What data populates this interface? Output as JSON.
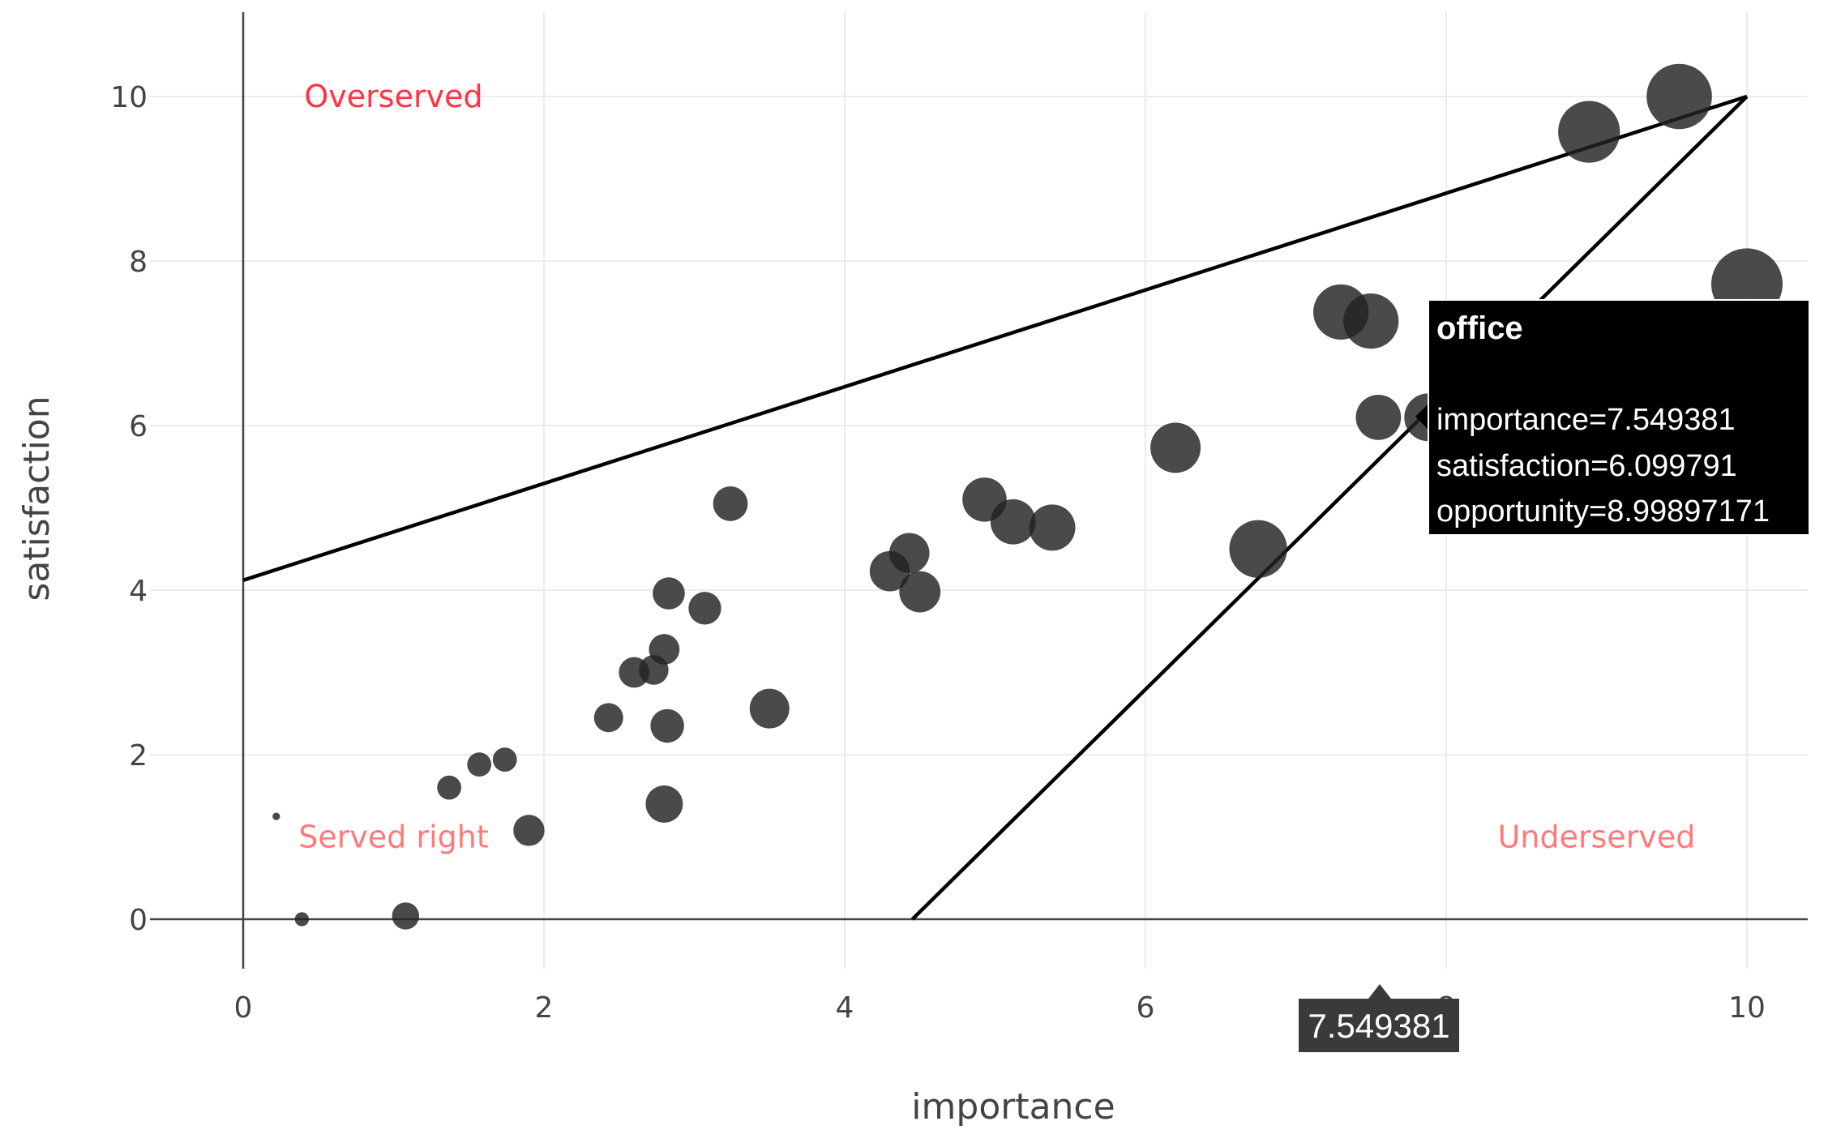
{
  "chart_data": {
    "type": "scatter",
    "title": "",
    "xlabel": "importance",
    "ylabel": "satisfaction",
    "xlim": [
      -0.6,
      10.4
    ],
    "ylim": [
      -0.75,
      10.95
    ],
    "x_ticks": [
      "0",
      "2",
      "4",
      "6",
      "8",
      "10"
    ],
    "x_tick_values": [
      0,
      2,
      4,
      6,
      8,
      10
    ],
    "y_ticks": [
      "0",
      "2",
      "4",
      "6",
      "8",
      "10"
    ],
    "y_tick_values": [
      0,
      2,
      4,
      6,
      8,
      10
    ],
    "grid": true,
    "marker_color": "#222222",
    "marker_opacity": 0.82,
    "size_variable": "opportunity",
    "points": [
      {
        "x": 9.55,
        "y": 10.0,
        "size": 13.0
      },
      {
        "x": 8.95,
        "y": 9.57,
        "size": 12.3
      },
      {
        "x": 10.0,
        "y": 7.72,
        "size": 14.2
      },
      {
        "x": 7.3,
        "y": 7.38,
        "size": 11.0
      },
      {
        "x": 7.5,
        "y": 7.27,
        "size": 11.0
      },
      {
        "x": 7.549381,
        "y": 6.099791,
        "size": 8.99897171,
        "label": "office"
      },
      {
        "x": 7.88,
        "y": 6.1,
        "size": 9.5
      },
      {
        "x": 6.2,
        "y": 5.73,
        "size": 10.0
      },
      {
        "x": 6.75,
        "y": 4.5,
        "size": 11.5
      },
      {
        "x": 4.93,
        "y": 5.1,
        "size": 8.8
      },
      {
        "x": 5.12,
        "y": 4.83,
        "size": 9.0
      },
      {
        "x": 5.38,
        "y": 4.76,
        "size": 9.2
      },
      {
        "x": 4.43,
        "y": 4.45,
        "size": 8.0
      },
      {
        "x": 4.3,
        "y": 4.23,
        "size": 8.0
      },
      {
        "x": 4.5,
        "y": 3.98,
        "size": 8.2
      },
      {
        "x": 3.24,
        "y": 5.05,
        "size": 6.9
      },
      {
        "x": 2.83,
        "y": 3.96,
        "size": 6.4
      },
      {
        "x": 3.07,
        "y": 3.78,
        "size": 6.5
      },
      {
        "x": 2.8,
        "y": 3.28,
        "size": 6.1
      },
      {
        "x": 2.6,
        "y": 3.0,
        "size": 6.1
      },
      {
        "x": 2.73,
        "y": 3.03,
        "size": 5.9
      },
      {
        "x": 3.5,
        "y": 2.56,
        "size": 7.9
      },
      {
        "x": 2.43,
        "y": 2.45,
        "size": 5.8
      },
      {
        "x": 2.82,
        "y": 2.35,
        "size": 6.7
      },
      {
        "x": 2.8,
        "y": 1.4,
        "size": 7.4
      },
      {
        "x": 1.74,
        "y": 1.94,
        "size": 4.8
      },
      {
        "x": 1.57,
        "y": 1.88,
        "size": 4.8
      },
      {
        "x": 1.37,
        "y": 1.6,
        "size": 4.8
      },
      {
        "x": 1.9,
        "y": 1.08,
        "size": 6.2
      },
      {
        "x": 0.22,
        "y": 1.25,
        "size": 1.5
      },
      {
        "x": 0.39,
        "y": 0.0,
        "size": 2.8
      },
      {
        "x": 1.08,
        "y": 0.04,
        "size": 5.4
      }
    ],
    "boundary_lines": [
      {
        "x": [
          0,
          10
        ],
        "y": [
          4.12,
          10
        ]
      },
      {
        "x": [
          4.45,
          10
        ],
        "y": [
          0,
          10
        ]
      }
    ],
    "annotations": [
      {
        "text": "Overserved",
        "x": 1.0,
        "y": 10.0,
        "color": "#ff3344"
      },
      {
        "text": "Served right",
        "x": 1.0,
        "y": 1.0,
        "color": "#ff7a7a"
      },
      {
        "text": "Underserved",
        "x": 9.0,
        "y": 1.0,
        "color": "#ff7a7a"
      }
    ],
    "hover": {
      "title": "office",
      "lines": [
        "importance=7.549381",
        "satisfaction=6.099791",
        "opportunity=8.99897171"
      ],
      "x_spike_label": "7.549381"
    }
  }
}
